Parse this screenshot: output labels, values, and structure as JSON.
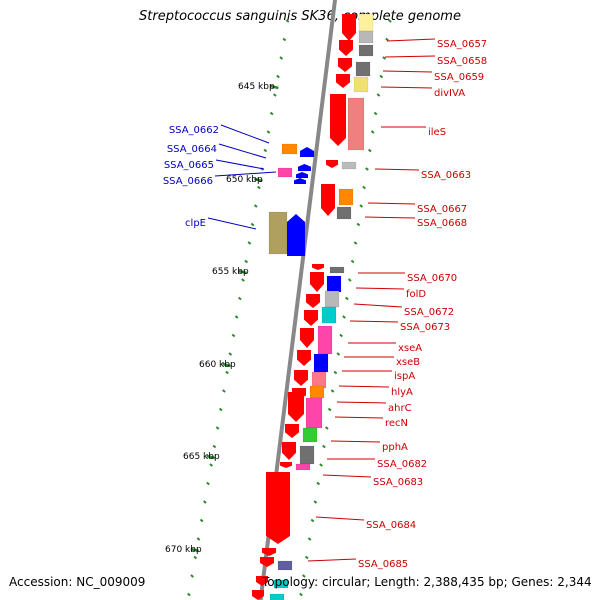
{
  "title": "Streptococcus sanguinis SK36, complete genome",
  "accession": "Accession: NC_009009",
  "topology": "Topology: circular; Length: 2,388,435 bp; Genes: 2,344",
  "colors": {
    "axis": "#888888",
    "tick": "#2a8a2a",
    "label_right": "#cc0000",
    "label_left": "#0000bb"
  },
  "kbp_ticks": [
    {
      "label": "645 kbp"
    },
    {
      "label": "650 kbp"
    },
    {
      "label": "655 kbp"
    },
    {
      "label": "660 kbp"
    },
    {
      "label": "665 kbp"
    },
    {
      "label": "670 kbp"
    }
  ],
  "right_labels": [
    "SSA_0657",
    "SSA_0658",
    "SSA_0659",
    "divIVA",
    "ileS",
    "SSA_0663",
    "SSA_0667",
    "SSA_0668",
    "SSA_0670",
    "folD",
    "SSA_0672",
    "SSA_0673",
    "xseA",
    "xseB",
    "ispA",
    "hlyA",
    "ahrC",
    "recN",
    "pphA",
    "SSA_0682",
    "SSA_0683",
    "SSA_0684",
    "SSA_0685"
  ],
  "left_labels": [
    "SSA_0662",
    "SSA_0664",
    "SSA_0665",
    "SSA_0666",
    "clpE"
  ]
}
